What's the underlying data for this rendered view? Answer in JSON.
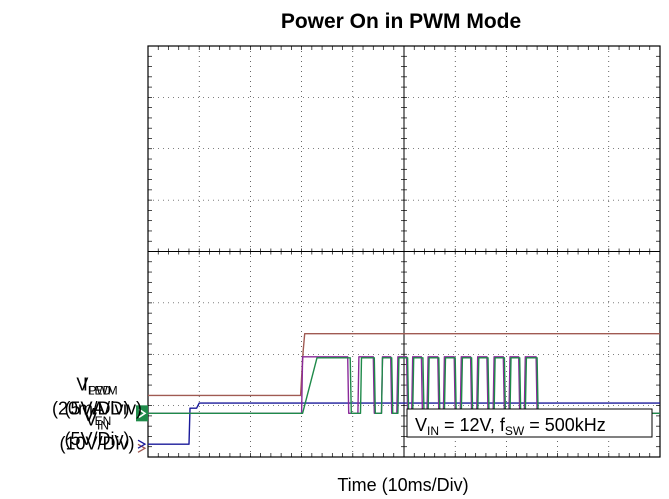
{
  "chart_data": {
    "type": "line",
    "title": "Power On in PWM Mode",
    "xlabel": "Time (10ms/Div)",
    "x_divisions": 10,
    "y_divisions": 8,
    "grid": true,
    "x_units": "div",
    "annotation": {
      "main1": "V",
      "sub1": "IN",
      "mid": " = 12V, f",
      "sub2": "SW",
      "end": " = 500kHz"
    },
    "series": [
      {
        "name_main": "V",
        "name_sub": "IN",
        "scale": "(10V/Div)",
        "color": "#a05a52",
        "ground_div": 0.17,
        "points": [
          [
            0,
            1.2
          ],
          [
            2.98,
            1.2
          ],
          [
            3.0,
            1.55
          ],
          [
            3.03,
            2.05
          ],
          [
            3.06,
            2.4
          ],
          [
            10,
            2.4
          ]
        ]
      },
      {
        "name_main": "V",
        "name_sub": "EN",
        "scale": "(5V/Div)",
        "color": "#1a1a9a",
        "ground_div": 0.25,
        "points": [
          [
            0,
            0.25
          ],
          [
            0.8,
            0.25
          ],
          [
            0.82,
            0.95
          ],
          [
            0.95,
            0.95
          ],
          [
            1.0,
            1.05
          ],
          [
            10,
            1.05
          ]
        ]
      },
      {
        "name_main": "V",
        "name_sub": "PWM",
        "scale": "(5V/Div)",
        "color": "#8a2a9a",
        "ground_div": 0.85,
        "points": [
          [
            0,
            0.85
          ],
          [
            3.0,
            0.85
          ],
          [
            3.02,
            1.95
          ],
          [
            3.6,
            1.95
          ],
          [
            3.9,
            1.95
          ],
          [
            3.92,
            0.85
          ],
          [
            4.1,
            0.85
          ],
          [
            4.12,
            1.95
          ],
          [
            4.4,
            1.95
          ],
          [
            4.42,
            0.85
          ],
          [
            4.56,
            0.85
          ],
          [
            4.58,
            1.95
          ],
          [
            4.74,
            1.95
          ],
          [
            4.76,
            0.85
          ],
          [
            4.86,
            0.85
          ],
          [
            4.88,
            1.95
          ],
          [
            5.05,
            1.95
          ],
          [
            5.07,
            0.85
          ],
          [
            5.15,
            0.85
          ],
          [
            5.17,
            1.95
          ],
          [
            5.34,
            1.95
          ],
          [
            5.36,
            0.85
          ],
          [
            5.45,
            0.85
          ],
          [
            5.47,
            1.95
          ],
          [
            5.66,
            1.95
          ],
          [
            5.68,
            0.85
          ],
          [
            5.77,
            0.85
          ],
          [
            5.79,
            1.95
          ],
          [
            5.98,
            1.95
          ],
          [
            6.0,
            0.85
          ],
          [
            6.1,
            0.85
          ],
          [
            6.12,
            1.95
          ],
          [
            6.3,
            1.95
          ],
          [
            6.32,
            0.85
          ],
          [
            6.42,
            0.85
          ],
          [
            6.44,
            1.95
          ],
          [
            6.62,
            1.95
          ],
          [
            6.64,
            0.85
          ],
          [
            6.74,
            0.85
          ],
          [
            6.76,
            1.95
          ],
          [
            6.94,
            1.95
          ],
          [
            6.96,
            0.85
          ],
          [
            7.05,
            0.85
          ],
          [
            7.07,
            1.95
          ],
          [
            7.24,
            1.95
          ],
          [
            7.26,
            0.85
          ],
          [
            7.35,
            0.85
          ],
          [
            7.37,
            1.95
          ],
          [
            7.58,
            1.95
          ],
          [
            7.6,
            0.85
          ],
          [
            10,
            0.85
          ]
        ]
      },
      {
        "name_main": "I",
        "name_sub": "LED",
        "scale": "(20mA/Div)",
        "color": "#1f8a4a",
        "ground_div": 0.85,
        "points": [
          [
            0,
            0.85
          ],
          [
            3.02,
            0.85
          ],
          [
            3.3,
            1.93
          ],
          [
            3.95,
            1.93
          ],
          [
            3.97,
            0.85
          ],
          [
            4.15,
            0.85
          ],
          [
            4.17,
            1.93
          ],
          [
            4.42,
            1.93
          ],
          [
            4.44,
            0.85
          ],
          [
            4.56,
            0.85
          ],
          [
            4.58,
            1.93
          ],
          [
            4.76,
            1.93
          ],
          [
            4.78,
            0.85
          ],
          [
            4.88,
            0.85
          ],
          [
            4.9,
            1.93
          ],
          [
            5.07,
            1.93
          ],
          [
            5.09,
            0.85
          ],
          [
            5.17,
            0.85
          ],
          [
            5.19,
            1.93
          ],
          [
            5.37,
            1.93
          ],
          [
            5.39,
            0.85
          ],
          [
            5.47,
            0.85
          ],
          [
            5.49,
            1.93
          ],
          [
            5.68,
            1.93
          ],
          [
            5.7,
            0.85
          ],
          [
            5.79,
            0.85
          ],
          [
            5.81,
            1.93
          ],
          [
            6.0,
            1.93
          ],
          [
            6.02,
            0.85
          ],
          [
            6.12,
            0.85
          ],
          [
            6.14,
            1.93
          ],
          [
            6.32,
            1.93
          ],
          [
            6.34,
            0.85
          ],
          [
            6.44,
            0.85
          ],
          [
            6.46,
            1.93
          ],
          [
            6.64,
            1.93
          ],
          [
            6.66,
            0.85
          ],
          [
            6.76,
            0.85
          ],
          [
            6.78,
            1.93
          ],
          [
            6.96,
            1.93
          ],
          [
            6.98,
            0.85
          ],
          [
            7.07,
            0.85
          ],
          [
            7.09,
            1.93
          ],
          [
            7.26,
            1.93
          ],
          [
            7.28,
            0.85
          ],
          [
            7.37,
            0.85
          ],
          [
            7.39,
            1.93
          ],
          [
            7.6,
            1.93
          ],
          [
            7.62,
            0.85
          ],
          [
            10,
            0.85
          ]
        ]
      }
    ]
  }
}
